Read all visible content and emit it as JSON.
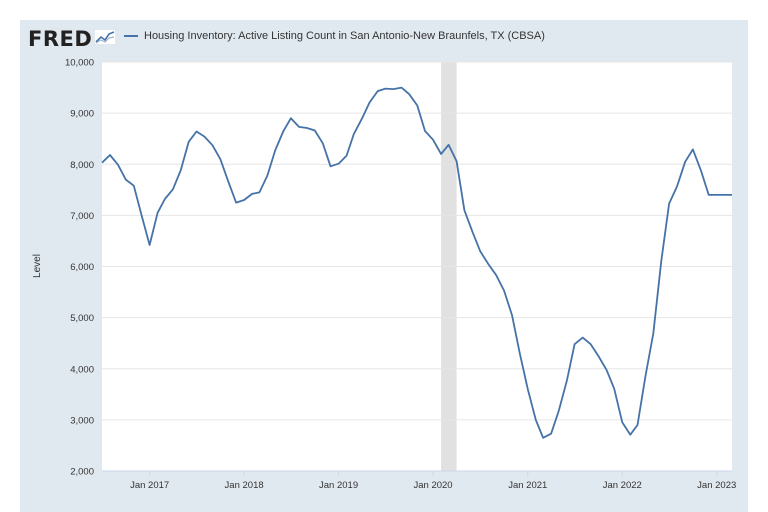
{
  "brand": {
    "logo_text": "FRED",
    "logo_icon": "fred-chart-icon"
  },
  "chart_data": {
    "type": "line",
    "legend_placement": "top",
    "grid": true,
    "ylabel": "Level",
    "xlabel": "",
    "ylim": [
      2000,
      10000
    ],
    "xlim": [
      "2016-07-01",
      "2023-03-01"
    ],
    "y_ticks": [
      "2,000",
      "3,000",
      "4,000",
      "5,000",
      "6,000",
      "7,000",
      "8,000",
      "9,000",
      "10,000"
    ],
    "y_tick_values": [
      2000,
      3000,
      4000,
      5000,
      6000,
      7000,
      8000,
      9000,
      10000
    ],
    "x_ticks": [
      "Jan 2017",
      "Jan 2018",
      "Jan 2019",
      "Jan 2020",
      "Jan 2021",
      "Jan 2022",
      "Jan 2023"
    ],
    "x_tick_dates": [
      "2017-01-01",
      "2018-01-01",
      "2019-01-01",
      "2020-01-01",
      "2021-01-01",
      "2022-01-01",
      "2023-01-01"
    ],
    "recession": {
      "start": "2020-02-01",
      "end": "2020-04-01",
      "color": "#e1e1e1"
    },
    "series": [
      {
        "name": "Housing Inventory: Active Listing Count in San Antonio-New Braunfels, TX (CBSA)",
        "color": "#4572a7",
        "x": [
          "2016-07",
          "2016-08",
          "2016-09",
          "2016-10",
          "2016-11",
          "2016-12",
          "2017-01",
          "2017-02",
          "2017-03",
          "2017-04",
          "2017-05",
          "2017-06",
          "2017-07",
          "2017-08",
          "2017-09",
          "2017-10",
          "2017-11",
          "2017-12",
          "2018-01",
          "2018-02",
          "2018-03",
          "2018-04",
          "2018-05",
          "2018-06",
          "2018-07",
          "2018-08",
          "2018-09",
          "2018-10",
          "2018-11",
          "2018-12",
          "2019-01",
          "2019-02",
          "2019-03",
          "2019-04",
          "2019-05",
          "2019-06",
          "2019-07",
          "2019-08",
          "2019-09",
          "2019-10",
          "2019-11",
          "2019-12",
          "2020-01",
          "2020-02",
          "2020-03",
          "2020-04",
          "2020-05",
          "2020-06",
          "2020-07",
          "2020-08",
          "2020-09",
          "2020-10",
          "2020-11",
          "2020-12",
          "2021-01",
          "2021-02",
          "2021-03",
          "2021-04",
          "2021-05",
          "2021-06",
          "2021-07",
          "2021-08",
          "2021-09",
          "2021-10",
          "2021-11",
          "2021-12",
          "2022-01",
          "2022-02",
          "2022-03",
          "2022-04",
          "2022-05",
          "2022-06",
          "2022-07",
          "2022-08",
          "2022-09",
          "2022-10",
          "2022-11",
          "2022-12",
          "2023-01",
          "2023-02",
          "2023-03"
        ],
        "values": [
          8030,
          8180,
          7990,
          7700,
          7580,
          7000,
          6420,
          7050,
          7320,
          7510,
          7880,
          8440,
          8640,
          8540,
          8370,
          8100,
          7660,
          7250,
          7300,
          7420,
          7450,
          7780,
          8270,
          8640,
          8900,
          8730,
          8710,
          8660,
          8410,
          7960,
          8010,
          8170,
          8590,
          8890,
          9210,
          9430,
          9480,
          9470,
          9500,
          9370,
          9150,
          8650,
          8480,
          8200,
          8380,
          8060,
          7100,
          6680,
          6300,
          6050,
          5830,
          5530,
          5050,
          4300,
          3600,
          3000,
          2650,
          2730,
          3180,
          3770,
          4480,
          4610,
          4480,
          4250,
          3980,
          3610,
          2950,
          2710,
          2900,
          3860,
          4690,
          6110,
          7230,
          7570,
          8050,
          8290,
          7880,
          7400,
          7400,
          7400,
          7400
        ]
      }
    ]
  }
}
